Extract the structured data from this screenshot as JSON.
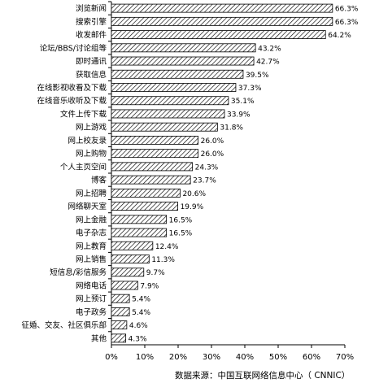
{
  "chart_data": {
    "type": "bar",
    "orientation": "horizontal",
    "categories": [
      "浏览新闻",
      "搜索引擎",
      "收发邮件",
      "论坛/BBS/讨论组等",
      "即时通讯",
      "获取信息",
      "在线影视收看及下载",
      "在线音乐收听及下载",
      "文件上传下载",
      "网上游戏",
      "网上校友录",
      "网上购物",
      "个人主页空间",
      "博客",
      "网上招聘",
      "网络聊天室",
      "网上金融",
      "电子杂志",
      "网上教育",
      "网上销售",
      "短信息/彩信服务",
      "网络电话",
      "网上预订",
      "电子政务",
      "征婚、交友、社区俱乐部",
      "其他"
    ],
    "values": [
      66.3,
      66.3,
      64.2,
      43.2,
      42.7,
      39.5,
      37.3,
      35.1,
      33.9,
      31.8,
      26.0,
      26.0,
      24.3,
      23.7,
      20.6,
      19.9,
      16.5,
      16.5,
      12.4,
      11.3,
      9.7,
      7.9,
      5.4,
      5.4,
      4.6,
      4.3
    ],
    "value_labels": [
      "66.3%",
      "66.3%",
      "64.2%",
      "43.2%",
      "42.7%",
      "39.5%",
      "37.3%",
      "35.1%",
      "33.9%",
      "31.8%",
      "26.0%",
      "26.0%",
      "24.3%",
      "23.7%",
      "20.6%",
      "19.9%",
      "16.5%",
      "16.5%",
      "12.4%",
      "11.3%",
      "9.7%",
      "7.9%",
      "5.4%",
      "5.4%",
      "4.6%",
      "4.3%"
    ],
    "xlim": [
      0,
      70
    ],
    "xticks": [
      "0%",
      "10%",
      "20%",
      "30%",
      "40%",
      "50%",
      "60%",
      "70%"
    ],
    "bar_pattern": "diagonal-hatch",
    "grid": false
  },
  "source_note": "数据来源：中国互联网络信息中心（ CNNIC）"
}
